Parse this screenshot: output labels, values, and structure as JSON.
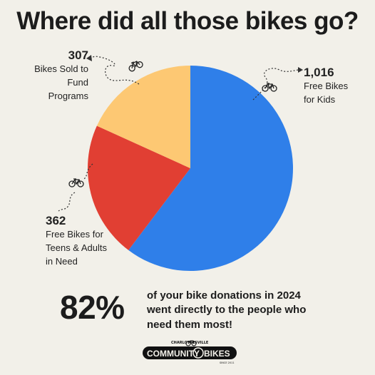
{
  "title": "Where did all those bikes go?",
  "chart_data": {
    "type": "pie",
    "slices": [
      {
        "value": 1016,
        "line1": "Free Bikes",
        "line2": "for Kids",
        "line3": "",
        "color": "#2f7fe9"
      },
      {
        "value": 362,
        "line1": "Free Bikes for",
        "line2": "Teens & Adults",
        "line3": "in Need",
        "color": "#e13f33"
      },
      {
        "value": 307,
        "line1": "Bikes Sold to",
        "line2": "Fund Programs",
        "line3": "",
        "color": "#fdc873"
      }
    ],
    "value_labels": [
      "1,016",
      "362",
      "307"
    ]
  },
  "summary": {
    "percent": "82%",
    "line1": "of your bike donations in 2024",
    "line2": "went directly to the people who",
    "line3": "need them most!"
  },
  "logo": {
    "top_text": "CHARLOTTESVILLE",
    "left_word": "COMMUNITY",
    "right_word": "BIKES",
    "since": "SINCE 2011"
  },
  "icons": [
    "bicycle-icon",
    "dotted-arrow-icon"
  ]
}
